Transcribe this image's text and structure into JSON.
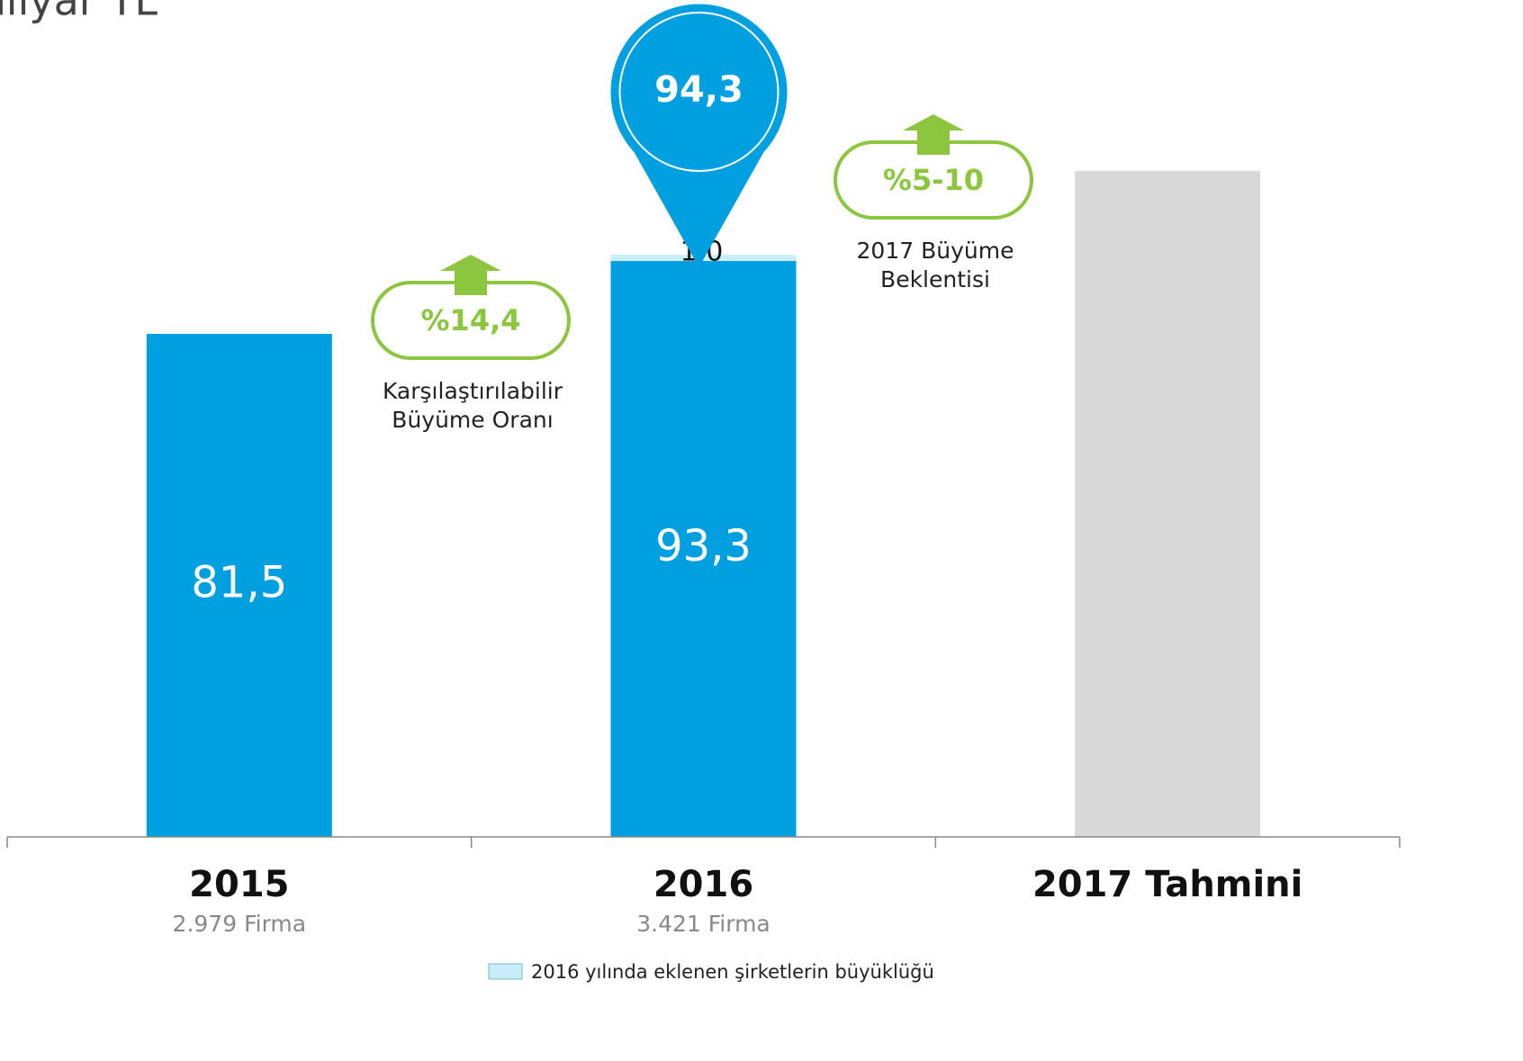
{
  "chart_data": {
    "type": "stacked_bar",
    "title": "milyar TL",
    "categories": [
      "2015",
      "2016",
      "2017 Tahmini"
    ],
    "category_subtitles": [
      "2.979 Firma",
      "3.421 Firma",
      null
    ],
    "series": [
      {
        "colors": [
          "#009fdf",
          "#009fdf",
          "#d9d9d9"
        ],
        "values": [
          81.5,
          93.3,
          107.9
        ],
        "value_labels": [
          "81,5",
          "93,3",
          null
        ]
      },
      {
        "name": "2016 yılında eklenen şirketlerin büyüklüğü",
        "color": "#c9edfb",
        "values": [
          null,
          1.0,
          null
        ],
        "value_labels": [
          null,
          "1,0",
          null
        ]
      }
    ],
    "total_callout": {
      "category": 1,
      "value": 94.3,
      "label": "94,3",
      "color": "#009fdf"
    },
    "growth_annotations": [
      {
        "value": 14.4,
        "label": "%14,4",
        "lines": [
          "Karşılaştırılabilir",
          "Büyüme Oranı"
        ],
        "color": "#8cc63f"
      },
      {
        "label": "%5-10",
        "lines": [
          "2017 Büyüme",
          "Beklentisi"
        ],
        "color": "#8cc63f"
      }
    ],
    "ylim": [
      0,
      135
    ]
  }
}
